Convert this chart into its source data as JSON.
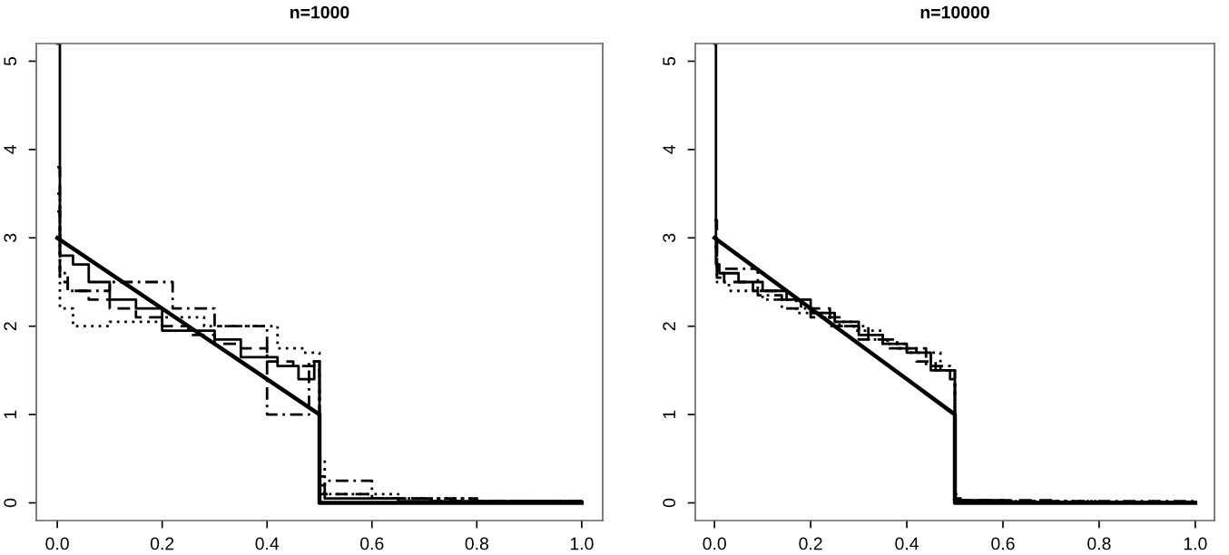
{
  "chart_data": [
    {
      "type": "step",
      "title": "n=1000",
      "xlim": [
        -0.04,
        1.04
      ],
      "ylim": [
        -0.2,
        5.2
      ],
      "xticks": [
        {
          "value": 0,
          "label": "0.0"
        },
        {
          "value": 0.2,
          "label": "0.2"
        },
        {
          "value": 0.4,
          "label": "0.4"
        },
        {
          "value": 0.6,
          "label": "0.6"
        },
        {
          "value": 0.8,
          "label": "0.8"
        },
        {
          "value": 1.0,
          "label": "1.0"
        }
      ],
      "yticks": [
        0,
        1,
        2,
        3,
        4,
        5
      ],
      "grid": false,
      "legend": false,
      "series": [
        {
          "type": "line",
          "color": "#000000",
          "line_style": "solid",
          "x": [
            0,
            0.5,
            0.5,
            1.0
          ],
          "values": [
            3,
            1,
            0,
            0
          ]
        },
        {
          "color": "#000000",
          "line_style": "dashed",
          "x": [
            0,
            0.005,
            0.02,
            0.06,
            0.1,
            0.15,
            0.2,
            0.25,
            0.3,
            0.35,
            0.4,
            0.45,
            0.49,
            0.5,
            0.51,
            0.6,
            0.7,
            1.0
          ],
          "values": [
            3.8,
            2.5,
            2.4,
            2.3,
            2.2,
            2.1,
            2.0,
            1.9,
            1.8,
            1.75,
            1.6,
            1.55,
            1.5,
            0.3,
            0.1,
            0.05,
            0.02,
            0
          ]
        },
        {
          "color": "#000000",
          "line_style": "dotted",
          "x": [
            0,
            0.005,
            0.03,
            0.1,
            0.2,
            0.28,
            0.35,
            0.42,
            0.47,
            0.5,
            0.51,
            0.65,
            0.8,
            1.0
          ],
          "values": [
            3.5,
            2.2,
            2.0,
            2.05,
            2.1,
            2.0,
            2.0,
            1.75,
            1.7,
            0.5,
            0.1,
            0.05,
            0.02,
            0
          ]
        },
        {
          "color": "#000000",
          "line_style": "dashdot",
          "x": [
            0,
            0.005,
            0.02,
            0.1,
            0.22,
            0.3,
            0.4,
            0.48,
            0.5,
            0.51,
            0.6,
            0.8,
            1.0
          ],
          "values": [
            3.3,
            2.6,
            2.4,
            2.5,
            2.2,
            2.0,
            1.0,
            1.6,
            0.2,
            0.25,
            0.05,
            0.02,
            0
          ]
        },
        {
          "color": "#000000",
          "line_style": "solid",
          "x": [
            0,
            0.005,
            0.03,
            0.06,
            0.1,
            0.15,
            0.2,
            0.25,
            0.3,
            0.35,
            0.42,
            0.46,
            0.49,
            0.5,
            0.51,
            0.65,
            1.0
          ],
          "values": [
            5.2,
            2.8,
            2.7,
            2.5,
            2.3,
            2.2,
            1.95,
            1.95,
            1.85,
            1.65,
            1.55,
            1.4,
            1.6,
            0.1,
            0.05,
            0.02,
            0
          ]
        }
      ]
    },
    {
      "type": "step",
      "title": "n=10000",
      "xlim": [
        -0.04,
        1.04
      ],
      "ylim": [
        -0.2,
        5.2
      ],
      "xticks": [
        {
          "value": 0,
          "label": "0.0"
        },
        {
          "value": 0.2,
          "label": "0.2"
        },
        {
          "value": 0.4,
          "label": "0.4"
        },
        {
          "value": 0.6,
          "label": "0.6"
        },
        {
          "value": 0.8,
          "label": "0.8"
        },
        {
          "value": 1.0,
          "label": "1.0"
        }
      ],
      "yticks": [
        0,
        1,
        2,
        3,
        4,
        5
      ],
      "grid": false,
      "legend": false,
      "series": [
        {
          "type": "line",
          "color": "#000000",
          "line_style": "solid",
          "x": [
            0,
            0.5,
            0.5,
            1.0
          ],
          "values": [
            3,
            1,
            0,
            0
          ]
        },
        {
          "color": "#000000",
          "line_style": "solid",
          "x": [
            0,
            0.003,
            0.01,
            0.05,
            0.1,
            0.15,
            0.2,
            0.25,
            0.3,
            0.35,
            0.4,
            0.45,
            0.5,
            0.505,
            0.6,
            1.0
          ],
          "values": [
            5.2,
            2.7,
            2.6,
            2.5,
            2.4,
            2.3,
            2.15,
            2.05,
            1.9,
            1.8,
            1.7,
            1.5,
            0.05,
            0.03,
            0.01,
            0
          ]
        },
        {
          "color": "#000000",
          "line_style": "dashed",
          "x": [
            0,
            0.005,
            0.02,
            0.08,
            0.13,
            0.18,
            0.24,
            0.3,
            0.36,
            0.42,
            0.46,
            0.5,
            0.51,
            0.7,
            1.0
          ],
          "values": [
            3.2,
            2.6,
            2.5,
            2.4,
            2.3,
            2.2,
            2.0,
            1.85,
            1.75,
            1.6,
            1.5,
            0.1,
            0.03,
            0.01,
            0
          ]
        },
        {
          "color": "#000000",
          "line_style": "dotted",
          "x": [
            0,
            0.005,
            0.03,
            0.1,
            0.17,
            0.23,
            0.29,
            0.35,
            0.4,
            0.47,
            0.5,
            0.51,
            0.8,
            1.0
          ],
          "values": [
            3.0,
            2.5,
            2.4,
            2.3,
            2.15,
            2.05,
            1.95,
            1.8,
            1.7,
            1.5,
            0.05,
            0.02,
            0.01,
            0
          ]
        },
        {
          "color": "#000000",
          "line_style": "dashdot",
          "x": [
            0,
            0.005,
            0.02,
            0.09,
            0.14,
            0.2,
            0.26,
            0.32,
            0.38,
            0.44,
            0.49,
            0.5,
            0.52,
            1.0
          ],
          "values": [
            2.9,
            2.55,
            2.65,
            2.35,
            2.2,
            2.1,
            2.0,
            1.85,
            1.75,
            1.55,
            1.4,
            0.05,
            0.02,
            0
          ]
        }
      ]
    }
  ]
}
